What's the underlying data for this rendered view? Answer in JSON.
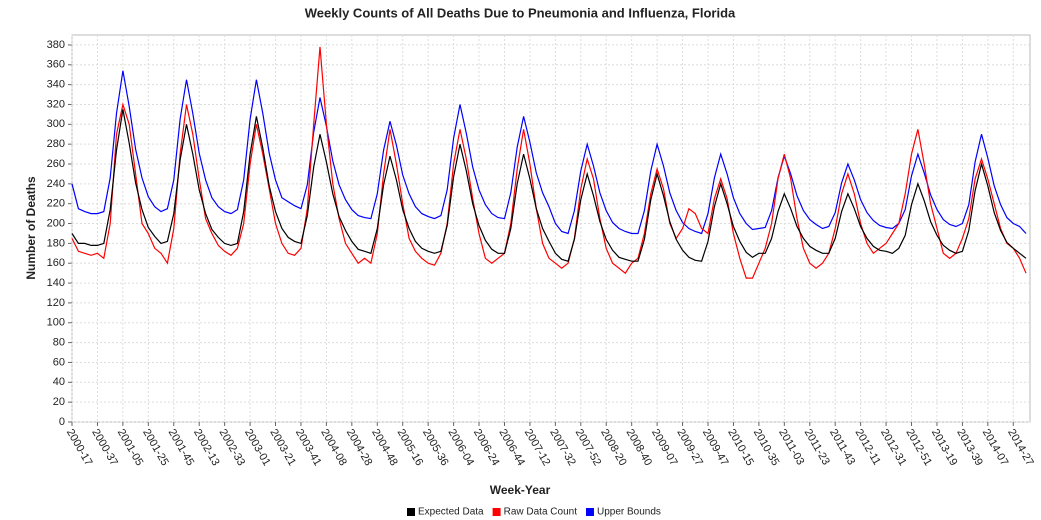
{
  "chart_data": {
    "type": "line",
    "title": "Weekly Counts of All Deaths Due to Pneumonia and Influenza, Florida",
    "x_label": "Week-Year",
    "y_label": "Number of Deaths",
    "categories": [
      "2000-17",
      null,
      null,
      null,
      "2000-37",
      null,
      null,
      null,
      "2001-05",
      null,
      null,
      null,
      "2001-25",
      null,
      null,
      null,
      "2001-45",
      null,
      null,
      null,
      "2002-13",
      null,
      null,
      null,
      "2002-33",
      null,
      null,
      null,
      "2003-01",
      null,
      null,
      null,
      "2003-21",
      null,
      null,
      null,
      "2003-41",
      null,
      null,
      null,
      "2004-08",
      null,
      null,
      null,
      "2004-28",
      null,
      null,
      null,
      "2004-48",
      null,
      null,
      null,
      "2005-16",
      null,
      null,
      null,
      "2005-36",
      null,
      null,
      null,
      "2006-04",
      null,
      null,
      null,
      "2006-24",
      null,
      null,
      null,
      "2006-44",
      null,
      null,
      null,
      "2007-12",
      null,
      null,
      null,
      "2007-32",
      null,
      null,
      null,
      "2007-52",
      null,
      null,
      null,
      "2008-20",
      null,
      null,
      null,
      "2008-40",
      null,
      null,
      null,
      "2009-07",
      null,
      null,
      null,
      "2009-27",
      null,
      null,
      null,
      "2009-47",
      null,
      null,
      null,
      "2010-15",
      null,
      null,
      null,
      "2010-35",
      null,
      null,
      null,
      "2011-03",
      null,
      null,
      null,
      "2011-23",
      null,
      null,
      null,
      "2011-43",
      null,
      null,
      null,
      "2012-11",
      null,
      null,
      null,
      "2012-31",
      null,
      null,
      null,
      "2012-51",
      null,
      null,
      null,
      "2013-19",
      null,
      null,
      null,
      "2013-39",
      null,
      null,
      null,
      "2014-07",
      null,
      null,
      null,
      "2014-27",
      null,
      null
    ],
    "series": [
      {
        "name": "Expected Data",
        "color": "#000000",
        "values": [
          190,
          180,
          180,
          178,
          178,
          180,
          214,
          274,
          315,
          281,
          241,
          214,
          196,
          187,
          180,
          182,
          210,
          264,
          300,
          270,
          234,
          210,
          194,
          186,
          180,
          178,
          180,
          212,
          270,
          308,
          276,
          238,
          212,
          195,
          186,
          182,
          180,
          208,
          257,
          290,
          262,
          230,
          207,
          193,
          182,
          174,
          172,
          170,
          195,
          239,
          268,
          244,
          214,
          195,
          182,
          175,
          172,
          170,
          172,
          198,
          247,
          280,
          253,
          220,
          198,
          183,
          174,
          170,
          170,
          195,
          240,
          270,
          245,
          215,
          195,
          182,
          170,
          164,
          162,
          184,
          224,
          250,
          228,
          202,
          184,
          173,
          166,
          164,
          162,
          162,
          184,
          224,
          250,
          228,
          202,
          184,
          173,
          166,
          163,
          162,
          182,
          217,
          240,
          220,
          197,
          182,
          171,
          166,
          170,
          170,
          185,
          212,
          230,
          215,
          197,
          185,
          177,
          173,
          170,
          170,
          185,
          212,
          230,
          215,
          197,
          185,
          177,
          173,
          172,
          170,
          175,
          188,
          219,
          240,
          223,
          202,
          188,
          178,
          173,
          170,
          172,
          193,
          233,
          260,
          238,
          211,
          193,
          181,
          175,
          170,
          165
        ]
      },
      {
        "name": "Raw Data Count",
        "color": "#ff0000",
        "values": [
          185,
          172,
          170,
          168,
          170,
          165,
          200,
          290,
          320,
          300,
          250,
          200,
          190,
          175,
          170,
          160,
          195,
          270,
          320,
          290,
          245,
          205,
          190,
          178,
          172,
          168,
          175,
          200,
          260,
          300,
          270,
          235,
          200,
          180,
          170,
          168,
          175,
          215,
          300,
          378,
          300,
          240,
          205,
          180,
          170,
          160,
          165,
          160,
          190,
          250,
          295,
          260,
          220,
          185,
          172,
          165,
          160,
          158,
          170,
          200,
          260,
          295,
          265,
          225,
          190,
          165,
          160,
          165,
          170,
          200,
          255,
          295,
          260,
          215,
          180,
          165,
          160,
          155,
          160,
          185,
          235,
          265,
          245,
          205,
          175,
          160,
          155,
          150,
          160,
          165,
          190,
          230,
          255,
          235,
          200,
          185,
          195,
          215,
          210,
          195,
          190,
          225,
          245,
          225,
          190,
          165,
          145,
          145,
          160,
          175,
          200,
          245,
          270,
          245,
          205,
          175,
          160,
          155,
          160,
          170,
          195,
          230,
          250,
          230,
          200,
          180,
          170,
          175,
          180,
          190,
          200,
          230,
          270,
          295,
          260,
          220,
          195,
          170,
          165,
          170,
          185,
          205,
          245,
          265,
          245,
          220,
          195,
          180,
          175,
          165,
          150
        ]
      },
      {
        "name": "Upper Bounds",
        "color": "#0000ff",
        "values": [
          240,
          215,
          212,
          210,
          210,
          212,
          246,
          311,
          354,
          318,
          275,
          246,
          227,
          217,
          212,
          215,
          244,
          305,
          345,
          311,
          271,
          244,
          226,
          217,
          212,
          210,
          214,
          244,
          305,
          345,
          311,
          271,
          244,
          226,
          222,
          218,
          215,
          239,
          292,
          327,
          298,
          263,
          239,
          224,
          214,
          208,
          206,
          205,
          230,
          274,
          303,
          279,
          249,
          230,
          217,
          210,
          207,
          205,
          208,
          234,
          286,
          320,
          291,
          257,
          234,
          219,
          210,
          206,
          205,
          231,
          277,
          308,
          282,
          251,
          231,
          217,
          200,
          192,
          190,
          213,
          253,
          280,
          258,
          231,
          213,
          201,
          195,
          192,
          190,
          190,
          213,
          253,
          280,
          258,
          231,
          213,
          201,
          195,
          192,
          190,
          210,
          246,
          270,
          250,
          226,
          210,
          200,
          194,
          195,
          196,
          213,
          246,
          268,
          250,
          228,
          213,
          204,
          199,
          195,
          197,
          211,
          241,
          260,
          244,
          224,
          211,
          203,
          198,
          196,
          195,
          200,
          214,
          248,
          270,
          251,
          229,
          214,
          204,
          199,
          197,
          200,
          219,
          262,
          290,
          266,
          238,
          219,
          206,
          200,
          197,
          190
        ]
      }
    ],
    "ylim": [
      0,
      390
    ],
    "yticks": [
      0,
      20,
      40,
      60,
      80,
      100,
      120,
      140,
      160,
      180,
      200,
      220,
      240,
      260,
      280,
      300,
      320,
      340,
      360,
      380
    ],
    "grid": true,
    "legend": "bottom"
  }
}
